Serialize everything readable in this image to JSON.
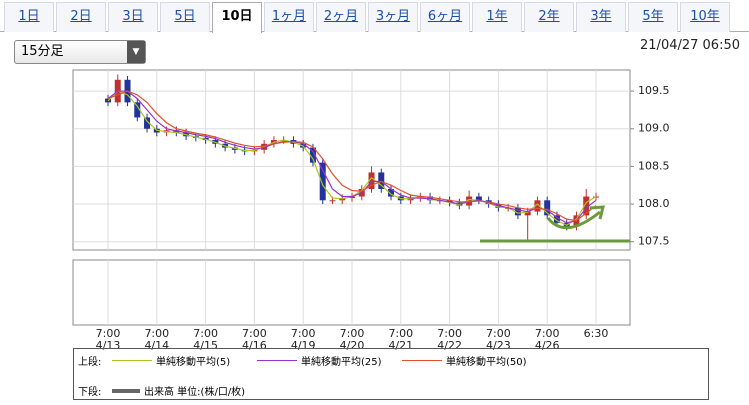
{
  "tabs": [
    "1日",
    "2日",
    "3日",
    "5日",
    "10日",
    "1ヶ月",
    "2ヶ月",
    "3ヶ月",
    "6ヶ月",
    "1年",
    "2年",
    "3年",
    "5年",
    "10年"
  ],
  "active_tab": 4,
  "interval": "15分足",
  "timestamp": "21/04/27 06:50",
  "chart_data": {
    "type": "candlestick",
    "categories": [
      "7:00\n4/13",
      null,
      null,
      null,
      null,
      "7:00\n4/14",
      null,
      null,
      null,
      null,
      "7:00\n4/15",
      null,
      null,
      null,
      null,
      "7:00\n4/16",
      null,
      null,
      null,
      null,
      "7:00\n4/19",
      null,
      null,
      null,
      null,
      "7:00\n4/20",
      null,
      null,
      null,
      null,
      "7:00\n4/21",
      null,
      null,
      null,
      null,
      "7:00\n4/22",
      null,
      null,
      null,
      null,
      "7:00\n4/23",
      null,
      null,
      null,
      null,
      "7:00\n4/26",
      null,
      null,
      null,
      null,
      "6:30"
    ],
    "open": [
      109.4,
      109.35,
      109.65,
      109.35,
      109.15,
      109.0,
      108.95,
      108.98,
      108.95,
      108.9,
      108.88,
      108.85,
      108.8,
      108.75,
      108.72,
      108.7,
      108.72,
      108.8,
      108.85,
      108.85,
      108.8,
      108.75,
      108.55,
      108.05,
      108.05,
      108.08,
      108.1,
      108.2,
      108.42,
      108.2,
      108.1,
      108.05,
      108.08,
      108.1,
      108.05,
      108.05,
      108.02,
      107.98,
      108.1,
      108.05,
      108.0,
      107.95,
      107.95,
      107.85,
      107.9,
      108.05,
      107.85,
      107.75,
      107.7,
      107.85,
      108.1
    ],
    "high": [
      109.45,
      109.72,
      109.7,
      109.4,
      109.2,
      109.05,
      109.03,
      109.03,
      109.0,
      108.95,
      108.93,
      108.9,
      108.85,
      108.8,
      108.77,
      108.77,
      108.85,
      108.9,
      108.9,
      108.9,
      108.85,
      108.8,
      108.6,
      108.1,
      108.13,
      108.15,
      108.25,
      108.5,
      108.47,
      108.25,
      108.15,
      108.13,
      108.15,
      108.15,
      108.1,
      108.1,
      108.07,
      108.18,
      108.15,
      108.1,
      108.05,
      108.0,
      108.0,
      107.95,
      108.1,
      108.1,
      107.9,
      107.8,
      107.9,
      108.2,
      108.15
    ],
    "low": [
      109.3,
      109.3,
      109.3,
      109.1,
      108.95,
      108.9,
      108.9,
      108.9,
      108.85,
      108.83,
      108.8,
      108.75,
      108.7,
      108.67,
      108.65,
      108.65,
      108.67,
      108.75,
      108.8,
      108.75,
      108.7,
      108.5,
      108.0,
      108.0,
      108.0,
      108.03,
      108.05,
      108.15,
      108.15,
      108.05,
      108.0,
      108.0,
      108.03,
      108.0,
      108.0,
      107.97,
      107.93,
      107.93,
      108.0,
      107.95,
      107.9,
      107.9,
      107.8,
      107.5,
      107.85,
      107.8,
      107.7,
      107.65,
      107.65,
      107.8,
      108.05
    ],
    "close": [
      109.35,
      109.65,
      109.35,
      109.15,
      109.0,
      108.95,
      108.98,
      108.95,
      108.9,
      108.88,
      108.85,
      108.8,
      108.75,
      108.72,
      108.7,
      108.72,
      108.8,
      108.85,
      108.85,
      108.8,
      108.75,
      108.55,
      108.05,
      108.05,
      108.08,
      108.1,
      108.2,
      108.42,
      108.2,
      108.1,
      108.05,
      108.08,
      108.1,
      108.05,
      108.05,
      108.02,
      107.98,
      108.1,
      108.05,
      108.0,
      107.95,
      107.95,
      107.85,
      107.9,
      108.05,
      107.85,
      107.75,
      107.7,
      107.85,
      108.1,
      108.1
    ],
    "up_color": "#c03030",
    "down_color": "#223399",
    "series": [
      {
        "name": "単純移動平均(5)",
        "color": "#a8c820",
        "values": [
          109.37,
          109.5,
          109.45,
          109.3,
          109.1,
          108.98,
          108.96,
          108.95,
          108.92,
          108.89,
          108.86,
          108.82,
          108.77,
          108.74,
          108.71,
          108.71,
          108.76,
          108.82,
          108.85,
          108.82,
          108.77,
          108.6,
          108.25,
          108.08,
          108.07,
          108.1,
          108.18,
          108.35,
          108.25,
          108.13,
          108.07,
          108.07,
          108.09,
          108.06,
          108.05,
          108.02,
          107.99,
          108.06,
          108.05,
          108.01,
          107.96,
          107.95,
          107.88,
          107.89,
          108.0,
          107.88,
          107.78,
          107.72,
          107.8,
          108.02,
          108.1
        ]
      },
      {
        "name": "単純移動平均(25)",
        "color": "#9933cc",
        "values": [
          109.4,
          109.5,
          109.5,
          109.4,
          109.25,
          109.1,
          109.0,
          108.97,
          108.95,
          108.92,
          108.9,
          108.87,
          108.82,
          108.78,
          108.75,
          108.73,
          108.75,
          108.8,
          108.83,
          108.83,
          108.8,
          108.7,
          108.45,
          108.2,
          108.1,
          108.1,
          108.15,
          108.3,
          108.3,
          108.2,
          108.12,
          108.08,
          108.08,
          108.07,
          108.05,
          108.03,
          108.0,
          108.03,
          108.05,
          108.02,
          107.98,
          107.95,
          107.92,
          107.9,
          107.95,
          107.92,
          107.82,
          107.75,
          107.78,
          107.95,
          108.05
        ]
      },
      {
        "name": "単純移動平均(50)",
        "color": "#e0502a",
        "values": [
          109.4,
          109.45,
          109.5,
          109.45,
          109.35,
          109.2,
          109.08,
          109.0,
          108.97,
          108.94,
          108.92,
          108.89,
          108.85,
          108.81,
          108.78,
          108.76,
          108.77,
          108.8,
          108.82,
          108.83,
          108.82,
          108.76,
          108.6,
          108.4,
          108.25,
          108.18,
          108.17,
          108.25,
          108.3,
          108.25,
          108.18,
          108.12,
          108.1,
          108.09,
          108.07,
          108.05,
          108.03,
          108.03,
          108.04,
          108.03,
          108.0,
          107.98,
          107.95,
          107.93,
          107.94,
          107.93,
          107.87,
          107.8,
          107.78,
          107.88,
          107.98
        ]
      }
    ],
    "ylim": [
      107.39,
      109.78
    ],
    "yticks": [
      109.5,
      {
        "value": 109,
        "label": "109.0"
      },
      108.5,
      {
        "value": 108,
        "label": "108.0"
      },
      107.5
    ],
    "grid": true,
    "legend": {
      "upper_label": "上段:",
      "lower_label": "下段:",
      "volume": {
        "name": "出来高 単位:(株/口/枚)",
        "color": "#666666"
      }
    }
  }
}
